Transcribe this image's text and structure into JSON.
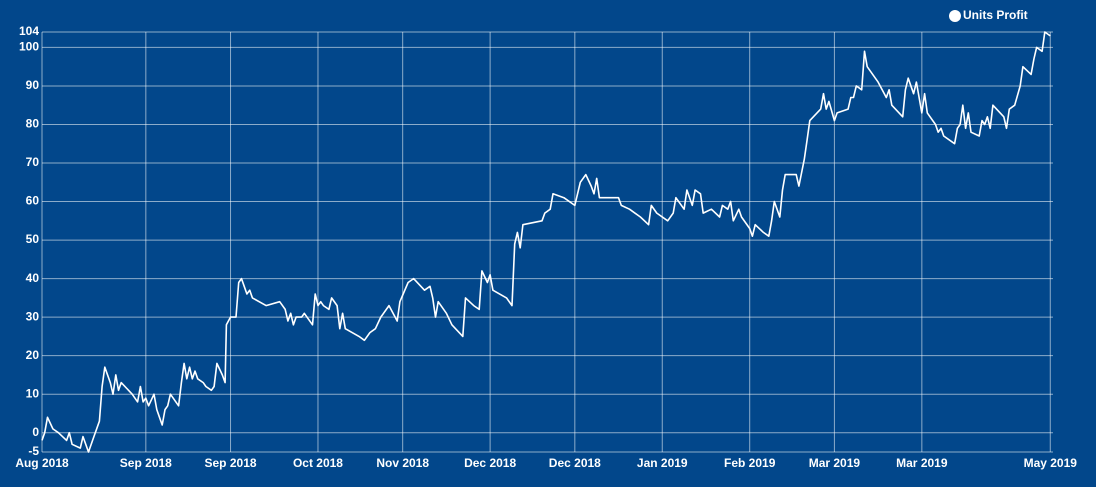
{
  "chart_data": {
    "type": "line",
    "xlim": [
      0,
      370
    ],
    "xticks": [
      {
        "value": 0,
        "label": "Aug 2018"
      },
      {
        "value": 38,
        "label": "Sep 2018"
      },
      {
        "value": 69,
        "label": "Sep 2018"
      },
      {
        "value": 101,
        "label": "Oct 2018"
      },
      {
        "value": 132,
        "label": "Nov 2018"
      },
      {
        "value": 164,
        "label": "Dec 2018"
      },
      {
        "value": 195,
        "label": "Dec 2018"
      },
      {
        "value": 227,
        "label": "Jan 2019"
      },
      {
        "value": 259,
        "label": "Feb 2019"
      },
      {
        "value": 290,
        "label": "Mar 2019"
      },
      {
        "value": 322,
        "label": "Mar 2019"
      },
      {
        "value": 369,
        "label": "May 2019"
      }
    ],
    "ylim": [
      -5,
      104
    ],
    "yticks": [
      -5,
      0,
      10,
      20,
      30,
      40,
      50,
      60,
      70,
      80,
      90,
      100,
      104
    ],
    "grid": true,
    "legend": "top-right",
    "series": [
      {
        "name": "Units Profit",
        "color": "#ffffff",
        "x": [
          0,
          1,
          2,
          4,
          6,
          9,
          10,
          11,
          14,
          15,
          17,
          19,
          21,
          22,
          23,
          25,
          26,
          27,
          28,
          29,
          33,
          35,
          36,
          37,
          38,
          39,
          41,
          42,
          43,
          44,
          45,
          46,
          47,
          50,
          51,
          52,
          53,
          54,
          55,
          56,
          57,
          59,
          60,
          62,
          63,
          64,
          66,
          67,
          67.5,
          69,
          71,
          72,
          73,
          74,
          75,
          76,
          77,
          82,
          87,
          89,
          90,
          91,
          92,
          93,
          95,
          96,
          99,
          100,
          101,
          102,
          103,
          105,
          106,
          108,
          109,
          110,
          111,
          116,
          118,
          120,
          122,
          124,
          127,
          130,
          131,
          134,
          136,
          140,
          142,
          143,
          144,
          145,
          148,
          150,
          154,
          155,
          158,
          160,
          161,
          163,
          164,
          165,
          170,
          172,
          173,
          174,
          175,
          176,
          183,
          184,
          186,
          187,
          191,
          195,
          197,
          199,
          201,
          202,
          203,
          204,
          211,
          212,
          215,
          219,
          222,
          223,
          225,
          229,
          231,
          232,
          235,
          236,
          238,
          239,
          241,
          242,
          245,
          248,
          249,
          251,
          252,
          253,
          255,
          256,
          259,
          260,
          261,
          264,
          266,
          267,
          268,
          270,
          271,
          272,
          276,
          277,
          279,
          280,
          281,
          285,
          286,
          287,
          288,
          290,
          291,
          295,
          296,
          297,
          298,
          300,
          301,
          302,
          306,
          309,
          310,
          311,
          315,
          316,
          317,
          319,
          320,
          322,
          323,
          324,
          327,
          328,
          329,
          330,
          334,
          335,
          336,
          337,
          338,
          339,
          340,
          343,
          344,
          345,
          346,
          347,
          348,
          352,
          353,
          354,
          356,
          358,
          359,
          362,
          363,
          364,
          366,
          367,
          369
        ],
        "values": [
          -2,
          0,
          4,
          1,
          0,
          -2,
          0,
          -3,
          -4,
          -1,
          -5,
          -1,
          3,
          12,
          17,
          13,
          10,
          15,
          11,
          13,
          10,
          8,
          12,
          8,
          9,
          7,
          10,
          6,
          4,
          2,
          6,
          7,
          10,
          7,
          13,
          18,
          14,
          17,
          14,
          16,
          14,
          13,
          12,
          11,
          12,
          18,
          15,
          13,
          28,
          30,
          30,
          39,
          40,
          38,
          36,
          37,
          35,
          33,
          34,
          32,
          29,
          31,
          28,
          30,
          30,
          31,
          28,
          36,
          33,
          34,
          33,
          32,
          35,
          33,
          27,
          31,
          27,
          25,
          24,
          26,
          27,
          30,
          33,
          29,
          34,
          39,
          40,
          37,
          38,
          35,
          30,
          34,
          31,
          28,
          25,
          35,
          33,
          32,
          42,
          39,
          41,
          37,
          35,
          33,
          49,
          52,
          48,
          54,
          55,
          57,
          58,
          62,
          61,
          59,
          65,
          67,
          64,
          62,
          66,
          61,
          61,
          59,
          58,
          56,
          54,
          59,
          57,
          55,
          57,
          61,
          58,
          63,
          59,
          63,
          62,
          57,
          58,
          56,
          59,
          58,
          60,
          55,
          58,
          56,
          53,
          51,
          54,
          52,
          51,
          55,
          60,
          56,
          63,
          67,
          67,
          64,
          71,
          76,
          81,
          84,
          88,
          84,
          86,
          81,
          83,
          84,
          87,
          87,
          90,
          89,
          99,
          95,
          91,
          87,
          89,
          85,
          82,
          89,
          92,
          88,
          91,
          83,
          88,
          83,
          80,
          78,
          79,
          77,
          75,
          79,
          80,
          85,
          79,
          83,
          78,
          77,
          81,
          80,
          82,
          79,
          85,
          82,
          79,
          84,
          85,
          90,
          95,
          93,
          97,
          100,
          99,
          104,
          103
        ]
      }
    ]
  }
}
